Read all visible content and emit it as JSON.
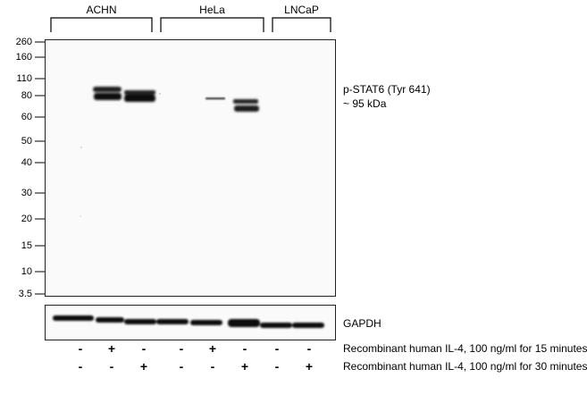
{
  "cell_lines": [
    {
      "label": "ACHN"
    },
    {
      "label": "HeLa"
    },
    {
      "label": "LNCaP"
    }
  ],
  "mw_markers": [
    "260",
    "160",
    "110",
    "80",
    "60",
    "50",
    "40",
    "30",
    "20",
    "15",
    "10",
    "3.5"
  ],
  "target": {
    "line1": "p-STAT6 (Tyr 641)",
    "line2": "~ 95 kDa"
  },
  "loading_control": "GAPDH",
  "treatments": [
    {
      "label": "Recombinant human IL-4, 100 ng/ml for 15 minutes",
      "signs": [
        "-",
        "+",
        "-",
        "-",
        "+",
        "-",
        "-",
        "-"
      ]
    },
    {
      "label": "Recombinant human IL-4, 100 ng/ml for 30 minutes",
      "signs": [
        "-",
        "-",
        "+",
        "-",
        "-",
        "+",
        "-",
        "+"
      ]
    }
  ]
}
